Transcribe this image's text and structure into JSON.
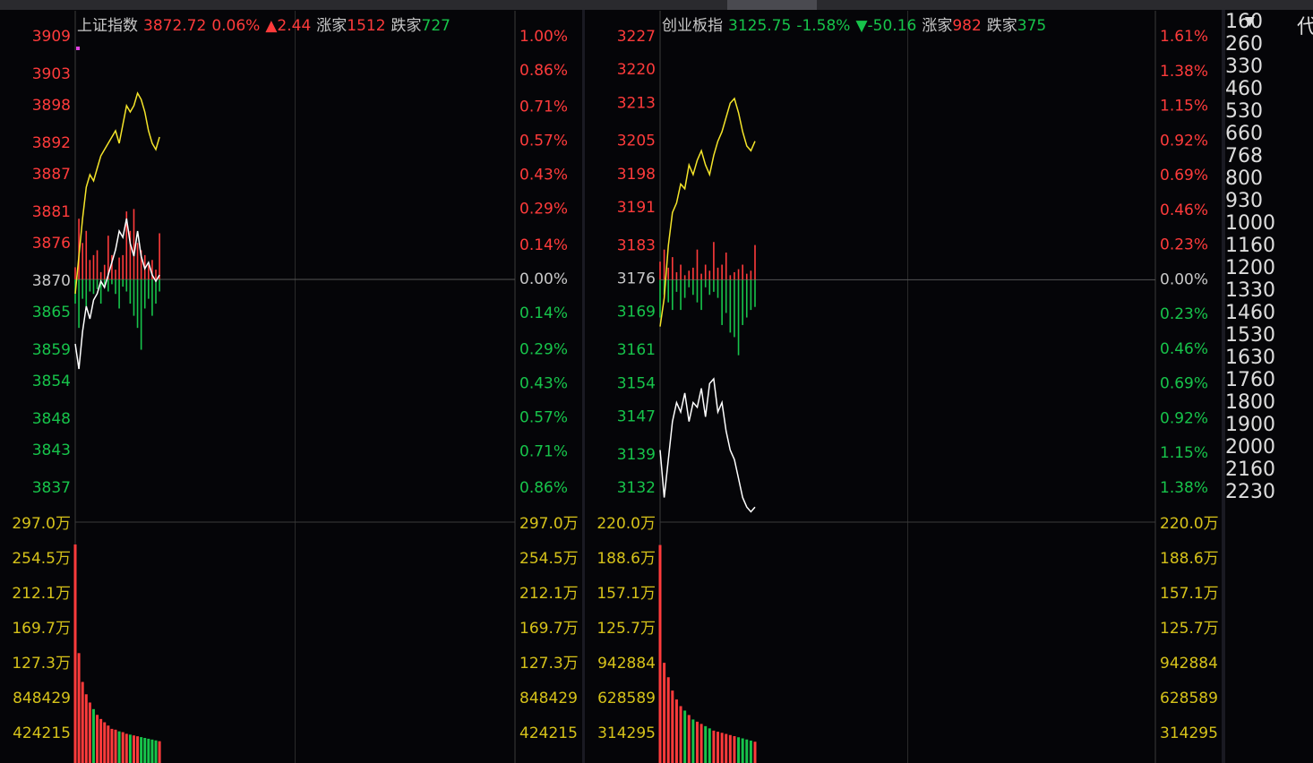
{
  "x": [
    0,
    2,
    4,
    6,
    8,
    10,
    12,
    14,
    16,
    18,
    20,
    22,
    24,
    26,
    28,
    30,
    32,
    34,
    36,
    38,
    40,
    42,
    44,
    46
  ],
  "xlim": [
    0,
    240
  ],
  "colors": {
    "up": "#ff3b3b",
    "down": "#17c44b",
    "flat": "#c8c8c8",
    "price_line": "#f5e52a",
    "avg_line": "#ffffff",
    "volume_tick": "#d6c21a"
  },
  "panels": [
    {
      "name": "上证指数",
      "price": "3872.72",
      "pct": "0.06%",
      "change": "▲2.44",
      "direction": "up",
      "up_label": "涨家",
      "up": "1512",
      "down_label": "跌家",
      "down": "727",
      "ylim": [
        3837,
        3909
      ],
      "yticks": [
        3909,
        3903,
        3898,
        3892,
        3887,
        3881,
        3876,
        3870,
        3865,
        3859,
        3854,
        3848,
        3843,
        3837
      ],
      "pct_lim": [
        -0.86,
        1.0
      ],
      "pct_ticks": [
        {
          "value": 1.0,
          "label": "1.00%"
        },
        {
          "value": 0.86,
          "label": "0.86%"
        },
        {
          "value": 0.71,
          "label": "0.71%"
        },
        {
          "value": 0.57,
          "label": "0.57%"
        },
        {
          "value": 0.43,
          "label": "0.43%"
        },
        {
          "value": 0.29,
          "label": "0.29%"
        },
        {
          "value": 0.14,
          "label": "0.14%"
        },
        {
          "value": 0,
          "label": "0.00%"
        },
        {
          "value": -0.14,
          "label": "0.14%"
        },
        {
          "value": -0.29,
          "label": "0.29%"
        },
        {
          "value": -0.43,
          "label": "0.43%"
        },
        {
          "value": -0.57,
          "label": "0.57%"
        },
        {
          "value": -0.71,
          "label": "0.71%"
        },
        {
          "value": -0.86,
          "label": "0.86%"
        }
      ],
      "vol_lim": [
        0,
        2970000
      ],
      "vol_ticks": [
        {
          "value": 2970000,
          "label": "297.0万"
        },
        {
          "value": 2545000,
          "label": "254.5万"
        },
        {
          "value": 2121000,
          "label": "212.1万"
        },
        {
          "value": 1697000,
          "label": "169.7万"
        },
        {
          "value": 1273000,
          "label": "127.3万"
        },
        848429,
        424215
      ],
      "price_line": [
        3868,
        3874,
        3880,
        3885,
        3887,
        3886,
        3888,
        3890,
        3891,
        3892,
        3893,
        3894,
        3892,
        3895,
        3898,
        3897,
        3898,
        3900,
        3899,
        3897,
        3894,
        3892,
        3891,
        3893
      ],
      "avg_line": [
        3860,
        3856,
        3862,
        3866,
        3864,
        3867,
        3868,
        3870,
        3869,
        3871,
        3873,
        3875,
        3878,
        3877,
        3880,
        3876,
        3874,
        3878,
        3874,
        3872,
        3873,
        3871,
        3870,
        3871
      ],
      "up_bars": [
        0.05,
        0.25,
        0.15,
        0.2,
        0.08,
        0.1,
        0.12,
        0.03,
        0.06,
        0.18,
        0.1,
        0.04,
        0.09,
        0.1,
        0.28,
        0.2,
        0.29,
        0.15,
        0.12,
        0.1,
        0.06,
        0.08,
        0.04,
        0.19
      ],
      "down_bars": [
        -0.1,
        -0.2,
        -0.08,
        -0.12,
        -0.05,
        -0.06,
        -0.04,
        -0.1,
        -0.03,
        -0.05,
        -0.02,
        -0.06,
        -0.12,
        -0.03,
        -0.05,
        -0.1,
        -0.15,
        -0.2,
        -0.29,
        -0.12,
        -0.08,
        -0.15,
        -0.1,
        -0.05
      ],
      "volume": [
        2720000,
        1400000,
        1050000,
        900000,
        800000,
        720000,
        650000,
        600000,
        560000,
        520000,
        480000,
        470000,
        450000,
        440000,
        420000,
        410000,
        400000,
        390000,
        380000,
        370000,
        360000,
        350000,
        340000,
        330000
      ]
    },
    {
      "name": "创业板指",
      "price": "3125.75",
      "pct": "-1.58%",
      "change": "▼-50.16",
      "direction": "down",
      "up_label": "涨家",
      "up": "982",
      "down_label": "跌家",
      "down": "375",
      "ylim": [
        3132,
        3227
      ],
      "yticks": [
        3227,
        3220,
        3213,
        3205,
        3198,
        3191,
        3183,
        3176,
        3169,
        3161,
        3154,
        3147,
        3139,
        3132
      ],
      "pct_lim": [
        -1.38,
        1.61
      ],
      "pct_ticks": [
        {
          "value": 1.61,
          "label": "1.61%"
        },
        {
          "value": 1.38,
          "label": "1.38%"
        },
        {
          "value": 1.15,
          "label": "1.15%"
        },
        {
          "value": 0.92,
          "label": "0.92%"
        },
        {
          "value": 0.69,
          "label": "0.69%"
        },
        {
          "value": 0.46,
          "label": "0.46%"
        },
        {
          "value": 0.23,
          "label": "0.23%"
        },
        {
          "value": 0,
          "label": "0.00%"
        },
        {
          "value": -0.23,
          "label": "0.23%"
        },
        {
          "value": -0.46,
          "label": "0.46%"
        },
        {
          "value": -0.69,
          "label": "0.69%"
        },
        {
          "value": -0.92,
          "label": "0.92%"
        },
        {
          "value": -1.15,
          "label": "1.15%"
        },
        {
          "value": -1.38,
          "label": "1.38%"
        }
      ],
      "vol_lim": [
        0,
        2200000
      ],
      "vol_ticks": [
        {
          "value": 2200000,
          "label": "220.0万"
        },
        {
          "value": 1886000,
          "label": "188.6万"
        },
        {
          "value": 1571000,
          "label": "157.1万"
        },
        {
          "value": 1257000,
          "label": "125.7万"
        },
        942884,
        628589,
        314295
      ],
      "price_line": [
        3166,
        3172,
        3183,
        3190,
        3192,
        3196,
        3195,
        3200,
        3198,
        3201,
        3203,
        3200,
        3198,
        3202,
        3205,
        3207,
        3210,
        3213,
        3214,
        3211,
        3207,
        3204,
        3203,
        3205
      ],
      "avg_line": [
        3140,
        3130,
        3138,
        3146,
        3150,
        3148,
        3152,
        3146,
        3150,
        3149,
        3153,
        3147,
        3154,
        3155,
        3148,
        3150,
        3144,
        3140,
        3138,
        3134,
        3130,
        3128,
        3127,
        3128
      ],
      "up_bars": [
        0.12,
        0.2,
        0.08,
        0.15,
        0.05,
        0.1,
        0.03,
        0.06,
        0.08,
        0.2,
        0.04,
        0.1,
        0.06,
        0.25,
        0.08,
        0.1,
        0.18,
        0.03,
        0.05,
        0.07,
        0.1,
        0.04,
        0.06,
        0.23
      ],
      "down_bars": [
        -0.25,
        -0.1,
        -0.15,
        -0.2,
        -0.08,
        -0.2,
        -0.12,
        -0.05,
        -0.1,
        -0.15,
        -0.2,
        -0.05,
        -0.1,
        -0.08,
        -0.12,
        -0.3,
        -0.22,
        -0.35,
        -0.38,
        -0.5,
        -0.3,
        -0.25,
        -0.2,
        -0.18
      ],
      "volume": [
        2010000,
        950000,
        820000,
        700000,
        620000,
        560000,
        520000,
        480000,
        440000,
        420000,
        400000,
        380000,
        360000,
        340000,
        330000,
        320000,
        310000,
        300000,
        290000,
        280000,
        270000,
        260000,
        250000,
        240000
      ]
    }
  ],
  "list": {
    "header": "代",
    "rows": [
      [
        "1",
        "60"
      ],
      [
        "2",
        "60"
      ],
      [
        "3",
        "30"
      ],
      [
        "4",
        "60"
      ],
      [
        "5",
        "30"
      ],
      [
        "6",
        "60"
      ],
      [
        "7",
        "68"
      ],
      [
        "8",
        "00"
      ],
      [
        "9",
        "30"
      ],
      [
        "10",
        "00"
      ],
      [
        "11",
        "60"
      ],
      [
        "12",
        "00"
      ],
      [
        "13",
        "30"
      ],
      [
        "14",
        "60"
      ],
      [
        "15",
        "30"
      ],
      [
        "16",
        "30"
      ],
      [
        "17",
        "60"
      ],
      [
        "18",
        "00"
      ],
      [
        "19",
        "00"
      ],
      [
        "20",
        "00"
      ],
      [
        "21",
        "60"
      ],
      [
        "22",
        "30"
      ]
    ]
  }
}
